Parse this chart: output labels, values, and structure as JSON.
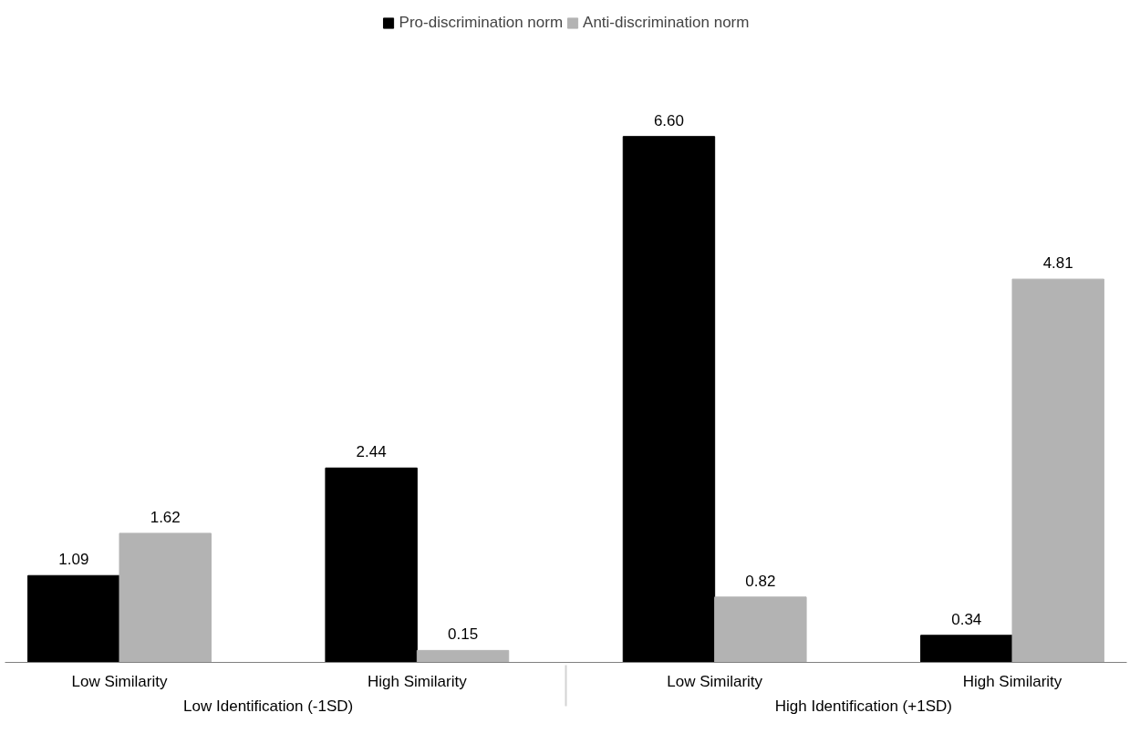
{
  "chart_data": {
    "type": "bar",
    "categories": [
      "Low Similarity",
      "High Similarity",
      "Low Similarity",
      "High Similarity"
    ],
    "series": [
      {
        "name": "Pro-discrimination norm",
        "color": "#000000",
        "values": [
          1.09,
          2.44,
          6.6,
          0.34
        ],
        "value_labels": [
          "1.09",
          "2.44",
          "6.60",
          "0.34"
        ]
      },
      {
        "name": "Anti-discrimination norm",
        "color": "#b3b3b3",
        "values": [
          1.62,
          0.15,
          0.82,
          4.81
        ],
        "value_labels": [
          "1.62",
          "0.15",
          "0.82",
          "4.81"
        ]
      }
    ],
    "annotations": [
      "Low Identification (-1SD)",
      "High Identification (+1SD)"
    ],
    "grid": false,
    "legend": "top"
  }
}
